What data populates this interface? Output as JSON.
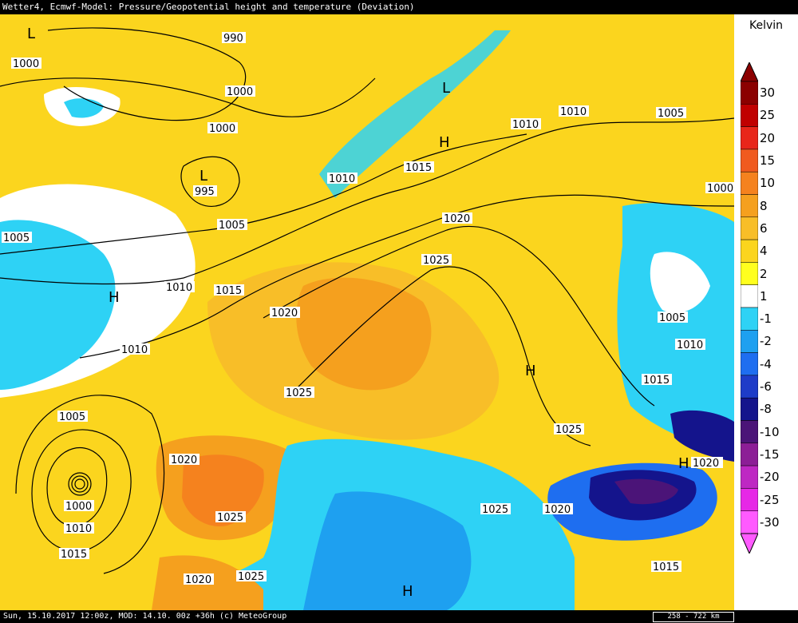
{
  "title": "Wetter4, Ecmwf-Model: Pressure/Geopotential height and temperature (Deviation)",
  "legend": {
    "unit": "Kelvin",
    "levels": [
      {
        "label": "30",
        "color": "#8b0000"
      },
      {
        "label": "25",
        "color": "#c00000"
      },
      {
        "label": "20",
        "color": "#e8261a"
      },
      {
        "label": "15",
        "color": "#f05a1e"
      },
      {
        "label": "10",
        "color": "#f5821e"
      },
      {
        "label": "8",
        "color": "#f5a01e"
      },
      {
        "label": "6",
        "color": "#f8be28"
      },
      {
        "label": "4",
        "color": "#fbd51e"
      },
      {
        "label": "2",
        "color": "#ffff1e"
      },
      {
        "label": "1",
        "color": "#ffffff"
      },
      {
        "label": "-1",
        "color": "#2ed2f5"
      },
      {
        "label": "-2",
        "color": "#1ea0f0"
      },
      {
        "label": "-4",
        "color": "#1e6ef0"
      },
      {
        "label": "-6",
        "color": "#1e3cc8"
      },
      {
        "label": "-8",
        "color": "#14148c"
      },
      {
        "label": "-10",
        "color": "#4b1478"
      },
      {
        "label": "-15",
        "color": "#8c1e96"
      },
      {
        "label": "-20",
        "color": "#be28c3"
      },
      {
        "label": "-25",
        "color": "#e628e6"
      },
      {
        "label": "-30",
        "color": "#ff5aff"
      }
    ]
  },
  "isobar_labels": [
    "990",
    "995",
    "1000",
    "1005",
    "1010",
    "1015",
    "1020",
    "1025"
  ],
  "pressure_centers": {
    "low": "L",
    "high": "H"
  },
  "footer": {
    "run_info": "Sun, 15.10.2017 12:00z, MOD: 14.10. 00z +36h (c) MeteoGroup",
    "scale": "258 - 722 km"
  }
}
